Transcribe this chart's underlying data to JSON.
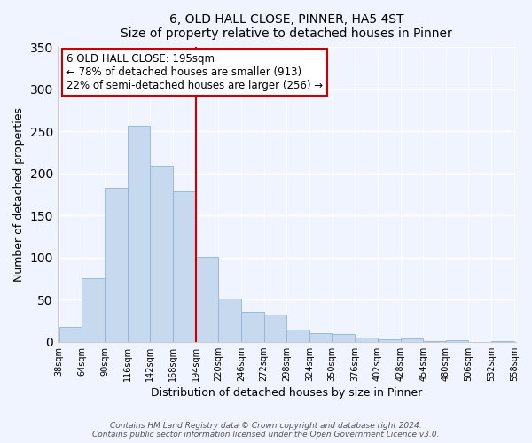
{
  "title": "6, OLD HALL CLOSE, PINNER, HA5 4ST",
  "subtitle": "Size of property relative to detached houses in Pinner",
  "xlabel": "Distribution of detached houses by size in Pinner",
  "ylabel": "Number of detached properties",
  "bar_labels": [
    "38sqm",
    "64sqm",
    "90sqm",
    "116sqm",
    "142sqm",
    "168sqm",
    "194sqm",
    "220sqm",
    "246sqm",
    "272sqm",
    "298sqm",
    "324sqm",
    "350sqm",
    "376sqm",
    "402sqm",
    "428sqm",
    "454sqm",
    "480sqm",
    "506sqm",
    "532sqm",
    "558sqm"
  ],
  "bar_values": [
    18,
    76,
    183,
    257,
    209,
    179,
    101,
    51,
    36,
    32,
    14,
    10,
    9,
    5,
    3,
    4,
    1,
    2,
    0,
    1
  ],
  "bar_color": "#c6d9ee",
  "bar_edge_color": "#8fb4d4",
  "vline_color": "#cc0000",
  "ylim": [
    0,
    350
  ],
  "yticks": [
    0,
    50,
    100,
    150,
    200,
    250,
    300,
    350
  ],
  "annotation_title": "6 OLD HALL CLOSE: 195sqm",
  "annotation_line1": "← 78% of detached houses are smaller (913)",
  "annotation_line2": "22% of semi-detached houses are larger (256) →",
  "annotation_box_color": "#ffffff",
  "annotation_box_edge": "#cc0000",
  "footer1": "Contains HM Land Registry data © Crown copyright and database right 2024.",
  "footer2": "Contains public sector information licensed under the Open Government Licence v3.0.",
  "bg_color": "#f0f4ff"
}
